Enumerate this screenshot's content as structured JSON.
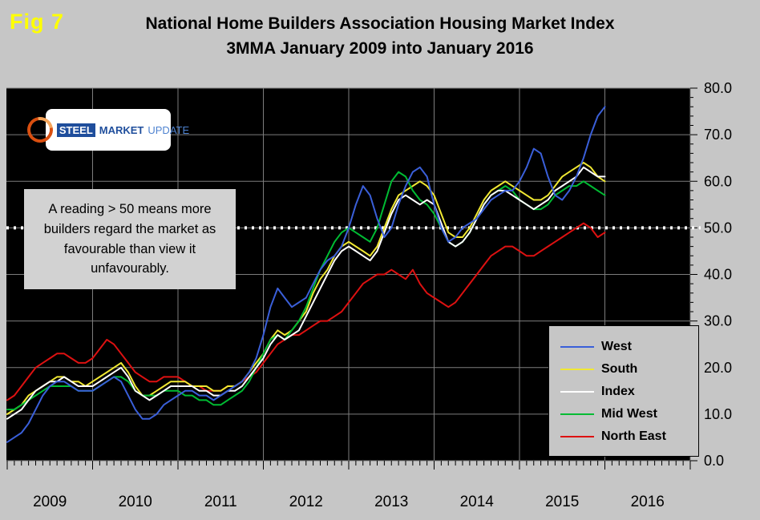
{
  "fig_label": "Fig 7",
  "title": {
    "line1": "National Home Builders Association Housing Market Index",
    "line2": "3MMA January 2009 into January 2016"
  },
  "logo": {
    "word1": "STEEL",
    "word2": "MARKET",
    "word3": "UPDATE"
  },
  "annotation": {
    "text": "A reading > 50 means more builders regard the market as favourable than view it unfavourably."
  },
  "colors": {
    "background": "#c6c6c6",
    "plot_background": "#000000",
    "gridline": "#7d7d7d",
    "reference_line": "#ffffff",
    "annotation_background": "#d2d2d2",
    "fig_label": "#ffff00",
    "logo_blue": "#1f4e9c",
    "logo_orange": "#d94f10"
  },
  "chart_data": {
    "type": "line",
    "title": "National Home Builders Association Housing Market Index 3MMA January 2009 into January 2016",
    "x_unit": "month",
    "x_range": {
      "start": "2009-01",
      "end": "2016-12",
      "data_end": "2016-01"
    },
    "x_tick_labels": [
      "2009",
      "2010",
      "2011",
      "2012",
      "2013",
      "2014",
      "2015",
      "2016"
    ],
    "y_axis": {
      "min": 0,
      "max": 80,
      "tick_interval": 10,
      "tick_labels_top_down": [
        "80.0",
        "70.0",
        "60.0",
        "50.0",
        "40.0",
        "30.0",
        "20.0",
        "10.0",
        "0.0"
      ]
    },
    "reference_line": {
      "value": 50,
      "style": "dotted",
      "color": "#ffffff"
    },
    "legend_position": "right-bottom",
    "grid": true,
    "series": [
      {
        "name": "West",
        "color": "#3a5fd9",
        "values": [
          4,
          5,
          6,
          8,
          11,
          14,
          16,
          17,
          17,
          16,
          15,
          15,
          15,
          16,
          17,
          18,
          17,
          14,
          11,
          9,
          9,
          10,
          12,
          13,
          14,
          15,
          15,
          14,
          14,
          13,
          14,
          15,
          16,
          17,
          19,
          22,
          27,
          33,
          37,
          35,
          33,
          34,
          35,
          38,
          41,
          43,
          44,
          46,
          50,
          55,
          59,
          57,
          52,
          48,
          50,
          55,
          59,
          62,
          63,
          61,
          55,
          50,
          47,
          48,
          50,
          51,
          52,
          54,
          56,
          57,
          58,
          58,
          60,
          63,
          67,
          66,
          61,
          57,
          56,
          58,
          61,
          65,
          70,
          74,
          76
        ]
      },
      {
        "name": "South",
        "color": "#f0e832",
        "values": [
          10,
          11,
          12,
          14,
          15,
          16,
          17,
          18,
          18,
          17,
          17,
          16,
          17,
          18,
          19,
          20,
          21,
          19,
          16,
          14,
          14,
          15,
          16,
          17,
          17,
          17,
          16,
          16,
          16,
          15,
          15,
          16,
          16,
          17,
          19,
          21,
          23,
          26,
          28,
          27,
          28,
          30,
          32,
          36,
          39,
          41,
          44,
          46,
          47,
          46,
          45,
          44,
          46,
          50,
          54,
          57,
          58,
          59,
          60,
          59,
          57,
          53,
          49,
          48,
          48,
          50,
          53,
          56,
          58,
          59,
          60,
          59,
          58,
          57,
          56,
          56,
          57,
          59,
          61,
          62,
          63,
          64,
          63,
          61,
          60
        ]
      },
      {
        "name": "Index",
        "color": "#ffffff",
        "values": [
          9,
          10,
          11,
          13,
          15,
          16,
          17,
          17,
          18,
          17,
          16,
          16,
          16,
          17,
          18,
          19,
          20,
          18,
          15,
          14,
          13,
          14,
          15,
          16,
          16,
          16,
          16,
          15,
          15,
          14,
          14,
          15,
          15,
          16,
          18,
          20,
          22,
          25,
          27,
          26,
          27,
          28,
          31,
          34,
          37,
          40,
          43,
          45,
          46,
          45,
          44,
          43,
          45,
          49,
          53,
          56,
          57,
          56,
          55,
          56,
          55,
          51,
          47,
          46,
          47,
          49,
          52,
          55,
          57,
          58,
          58,
          57,
          56,
          55,
          54,
          55,
          56,
          58,
          59,
          60,
          61,
          63,
          62,
          61,
          61
        ]
      },
      {
        "name": "Mid West",
        "color": "#00bb33",
        "values": [
          11,
          11,
          12,
          13,
          14,
          15,
          16,
          16,
          16,
          16,
          15,
          15,
          15,
          16,
          17,
          18,
          18,
          17,
          15,
          14,
          14,
          14,
          15,
          15,
          15,
          14,
          14,
          13,
          13,
          12,
          12,
          13,
          14,
          15,
          17,
          20,
          23,
          26,
          27,
          26,
          28,
          30,
          33,
          37,
          41,
          44,
          47,
          49,
          50,
          49,
          48,
          47,
          50,
          55,
          60,
          62,
          61,
          58,
          56,
          55,
          53,
          50,
          47,
          46,
          47,
          49,
          52,
          55,
          57,
          58,
          59,
          58,
          56,
          55,
          54,
          54,
          55,
          57,
          58,
          59,
          59,
          60,
          59,
          58,
          57
        ]
      },
      {
        "name": "North East",
        "color": "#dd1111",
        "values": [
          13,
          14,
          16,
          18,
          20,
          21,
          22,
          23,
          23,
          22,
          21,
          21,
          22,
          24,
          26,
          25,
          23,
          21,
          19,
          18,
          17,
          17,
          18,
          18,
          18,
          17,
          16,
          16,
          15,
          15,
          15,
          16,
          16,
          17,
          18,
          19,
          21,
          23,
          25,
          26,
          27,
          27,
          28,
          29,
          30,
          30,
          31,
          32,
          34,
          36,
          38,
          39,
          40,
          40,
          41,
          40,
          39,
          41,
          38,
          36,
          35,
          34,
          33,
          34,
          36,
          38,
          40,
          42,
          44,
          45,
          46,
          46,
          45,
          44,
          44,
          45,
          46,
          47,
          48,
          49,
          50,
          51,
          50,
          48,
          49
        ]
      }
    ]
  }
}
